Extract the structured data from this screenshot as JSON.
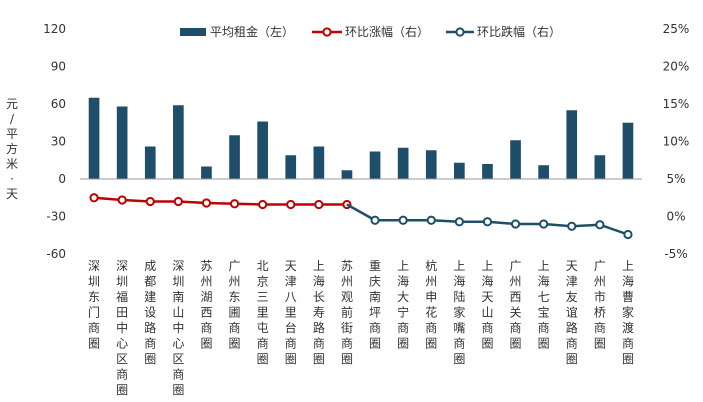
{
  "chart_data": {
    "type": "bar+line",
    "categories": [
      "深圳东门商圈",
      "深圳福田中心区商圈",
      "成都建设路商圈",
      "深圳南山中心区商圈",
      "苏州湖西商圈",
      "广州东圃商圈",
      "北京三里屯商圈",
      "天津八里台商圈",
      "上海长寿路商圈",
      "苏州观前街商圈",
      "重庆南坪商圈",
      "上海大宁商圈",
      "杭州申花商圈",
      "上海陆家嘴商圈",
      "上海天山商圈",
      "广州西关商圈",
      "上海七宝商圈",
      "天津友谊路商圈",
      "广州市桥商圈",
      "上海曹家渡商圈"
    ],
    "series": [
      {
        "name": "平均租金（左）",
        "type": "bar",
        "axis": "left",
        "values": [
          65,
          58,
          26,
          59,
          10,
          35,
          46,
          19,
          26,
          7,
          22,
          25,
          23,
          13,
          12,
          31,
          11,
          55,
          19,
          45
        ]
      },
      {
        "name": "环比涨幅（右）",
        "type": "line",
        "axis": "right",
        "values": [
          2.5,
          2.2,
          2.0,
          2.0,
          1.8,
          1.7,
          1.6,
          1.6,
          1.6,
          1.6,
          null,
          null,
          null,
          null,
          null,
          null,
          null,
          null,
          null,
          null
        ]
      },
      {
        "name": "环比跌幅（右）",
        "type": "line",
        "axis": "right",
        "values": [
          null,
          null,
          null,
          null,
          null,
          null,
          null,
          null,
          null,
          null,
          -0.5,
          -0.5,
          -0.5,
          -0.7,
          -0.7,
          -1.0,
          -1.0,
          -1.3,
          -1.1,
          -2.4
        ]
      }
    ],
    "colors": {
      "bar": "#1f4e6b",
      "rise": "#c00000",
      "fall": "#1f4e6b",
      "axis": "#999999"
    },
    "ylabel": "元/平方米·天",
    "ylim": [
      -60,
      120
    ],
    "yticks": [
      -60,
      -30,
      0,
      30,
      60,
      90,
      120
    ],
    "y2lim": [
      -5,
      25
    ],
    "y2ticks": [
      "-5%",
      "0%",
      "5%",
      "10%",
      "15%",
      "20%",
      "25%"
    ],
    "legend_position": "top",
    "grid": false
  }
}
